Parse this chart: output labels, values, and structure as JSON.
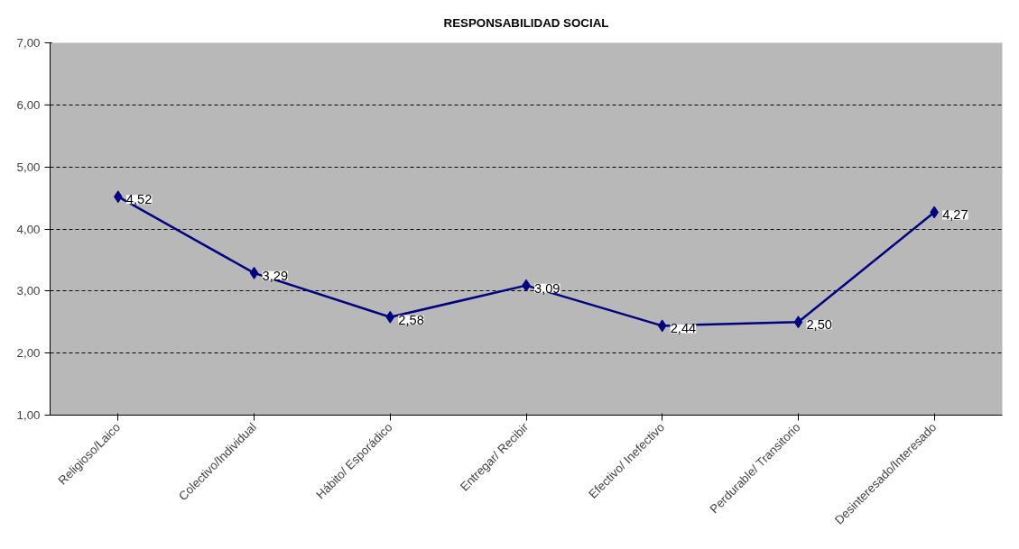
{
  "chart_data": {
    "type": "line",
    "title": "RESPONSABILIDAD SOCIAL",
    "categories": [
      "Religioso/Laico",
      "Colectivo/Individual",
      "Hábito/ Esporádico",
      "Entregar/ Recibir",
      "Efectivo/ Inefectivo",
      "Perdurable/ Transitorio",
      "Desinteresado/Interesado"
    ],
    "series": [
      {
        "color": "#000080",
        "values": [
          4.52,
          3.29,
          2.58,
          3.09,
          2.44,
          2.5,
          4.27
        ],
        "value_labels": [
          "4,52",
          "3,29",
          "2,58",
          "3,09",
          "2,44",
          "2,50",
          "4,27"
        ]
      }
    ],
    "ylim": [
      1,
      7
    ],
    "yticks": [
      {
        "value": 1,
        "label": "1,00"
      },
      {
        "value": 2,
        "label": "2,00"
      },
      {
        "value": 3,
        "label": "3,00"
      },
      {
        "value": 4,
        "label": "4,00"
      },
      {
        "value": 5,
        "label": "5,00"
      },
      {
        "value": 6,
        "label": "6,00"
      },
      {
        "value": 7,
        "label": "7,00"
      }
    ],
    "grid": "y",
    "marker": "diamond",
    "line_style": "solid"
  }
}
